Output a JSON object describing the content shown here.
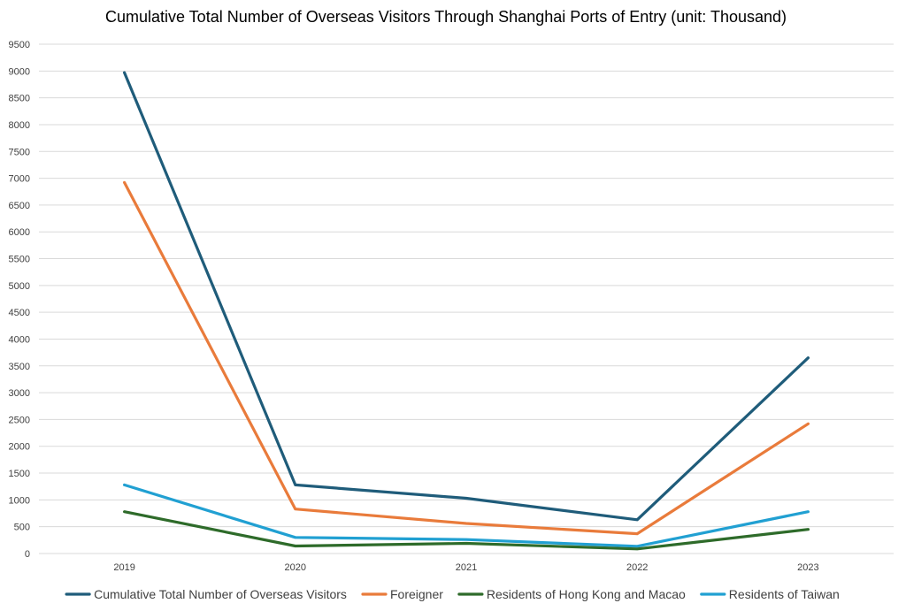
{
  "chart_data": {
    "type": "line",
    "title": "Cumulative Total Number of Overseas Visitors Through Shanghai Ports of Entry (unit: Thousand)",
    "xlabel": "",
    "ylabel": "",
    "categories": [
      "2019",
      "2020",
      "2021",
      "2022",
      "2023"
    ],
    "ylim": [
      0,
      9500
    ],
    "yticks": [
      0,
      500,
      1000,
      1500,
      2000,
      2500,
      3000,
      3500,
      4000,
      4500,
      5000,
      5500,
      6000,
      6500,
      7000,
      7500,
      8000,
      8500,
      9000,
      9500
    ],
    "ytick_labels": [
      "0",
      "500",
      "1000",
      "1500",
      "2000",
      "2500",
      "3000",
      "3500",
      "4000",
      "4500",
      "5000",
      "5500",
      "6000",
      "6500",
      "7000",
      "7500",
      "8000",
      "8500",
      "9000",
      "9500"
    ],
    "grid": true,
    "legend_position": "bottom",
    "series": [
      {
        "name": "Cumulative Total Number of Overseas Visitors",
        "color": "#1f5c7a",
        "values": [
          8970,
          1280,
          1030,
          630,
          3650
        ]
      },
      {
        "name": "Foreigner",
        "color": "#e97b3b",
        "values": [
          6920,
          830,
          560,
          370,
          2420
        ]
      },
      {
        "name": "Residents of Hong Kong and Macao",
        "color": "#2e6b2a",
        "values": [
          780,
          140,
          190,
          85,
          450
        ]
      },
      {
        "name": "Residents of Taiwan",
        "color": "#21a0d2",
        "values": [
          1280,
          300,
          260,
          135,
          780
        ]
      }
    ]
  }
}
